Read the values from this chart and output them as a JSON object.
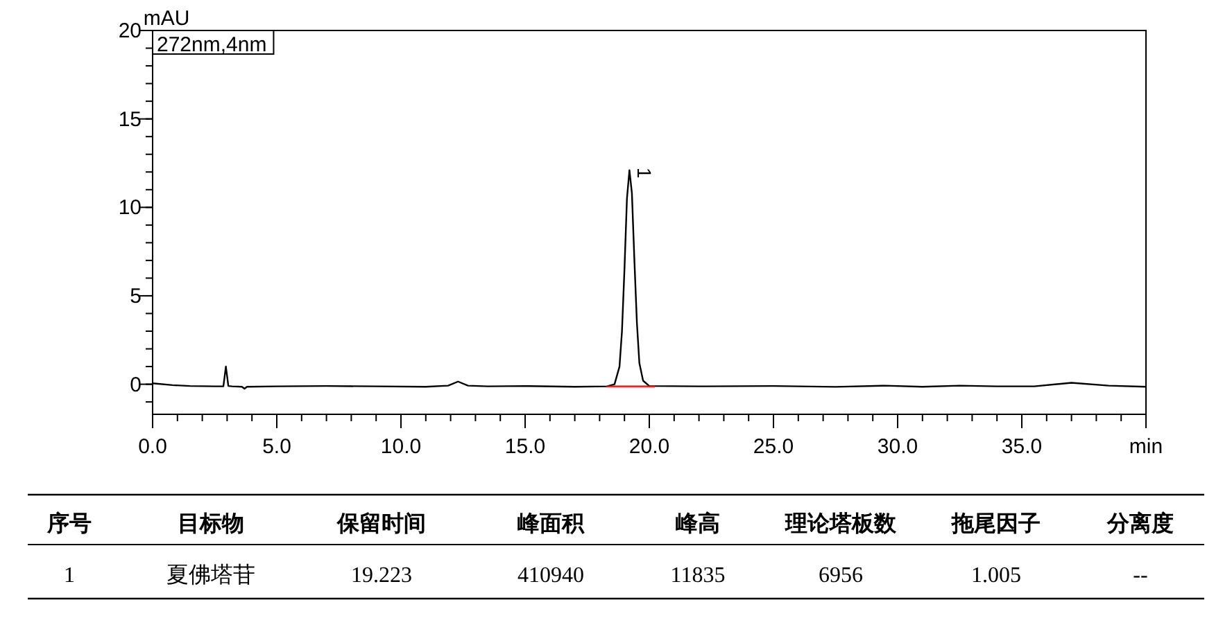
{
  "chart_data": {
    "type": "line",
    "ylabel": "mAU",
    "xlabel": "min",
    "xlim": [
      0,
      40
    ],
    "ylim": [
      -1.7,
      20
    ],
    "xticks": [
      {
        "value": 0,
        "label": "0.0"
      },
      {
        "value": 5,
        "label": "5.0"
      },
      {
        "value": 10,
        "label": "10.0"
      },
      {
        "value": 15,
        "label": "15.0"
      },
      {
        "value": 20,
        "label": "20.0"
      },
      {
        "value": 25,
        "label": "25.0"
      },
      {
        "value": 30,
        "label": "30.0"
      },
      {
        "value": 35,
        "label": "35.0"
      },
      {
        "value": 40,
        "label": null
      }
    ],
    "yticks": [
      0,
      5,
      10,
      15,
      20
    ],
    "grid": false,
    "series": [
      {
        "color": "#000000",
        "x": [
          0,
          0.8,
          1.5,
          2.5,
          2.85,
          2.95,
          3.05,
          3.2,
          3.6,
          3.7,
          3.8,
          5,
          7,
          9,
          11,
          11.9,
          12.3,
          12.7,
          13.5,
          15,
          17,
          18.3,
          18.6,
          18.8,
          18.9,
          19.0,
          19.1,
          19.2,
          19.3,
          19.4,
          19.5,
          19.6,
          19.75,
          20.0,
          22,
          25,
          27.5,
          29.5,
          31,
          32.5,
          34,
          35.5,
          37,
          38.5,
          40
        ],
        "values": [
          0.05,
          -0.05,
          -0.1,
          -0.12,
          -0.12,
          1.0,
          -0.1,
          -0.12,
          -0.14,
          -0.25,
          -0.14,
          -0.12,
          -0.1,
          -0.12,
          -0.14,
          -0.08,
          0.15,
          -0.08,
          -0.12,
          -0.1,
          -0.14,
          -0.12,
          0.0,
          1.0,
          3.0,
          6.5,
          10.5,
          12.1,
          10.8,
          7.0,
          3.5,
          1.2,
          0.2,
          -0.1,
          -0.12,
          -0.1,
          -0.15,
          -0.08,
          -0.14,
          -0.08,
          -0.12,
          -0.12,
          0.08,
          -0.08,
          -0.14
        ]
      },
      {
        "color": "#ff0000",
        "x": [
          18.3,
          20.2
        ],
        "values": [
          -0.12,
          -0.12
        ]
      }
    ],
    "annotations": [
      "272nm,4nm",
      {
        "text": "1",
        "x": 19.2,
        "y": 12.1
      },
      "序号",
      "目标物",
      "保留时间",
      "峰面积",
      "峰高",
      "理论塔板数",
      "拖尾因子",
      "分离度",
      "1",
      "夏佛塔苷",
      "19.223",
      "410940",
      "11835",
      "6956",
      "1.005",
      "--"
    ]
  }
}
